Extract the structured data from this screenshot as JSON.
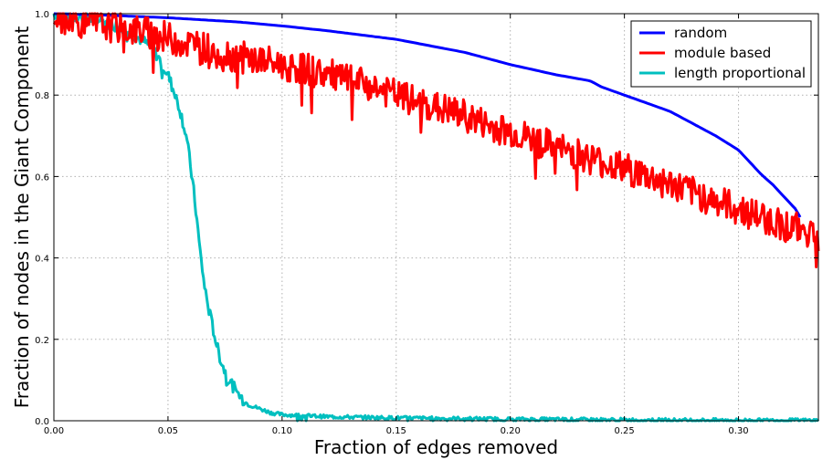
{
  "chart_data": {
    "type": "line",
    "xlabel": "Fraction of edges removed",
    "ylabel": "Fraction of nodes in the Giant Component",
    "xlim": [
      0,
      0.335
    ],
    "ylim": [
      0,
      1.0
    ],
    "xticks": [
      0,
      0.05,
      0.1,
      0.15,
      0.2,
      0.25,
      0.3
    ],
    "xtick_labels": [
      "0.00",
      "0.05",
      "0.10",
      "0.15",
      "0.20",
      "0.25",
      "0.30"
    ],
    "yticks": [
      0,
      0.2,
      0.4,
      0.6,
      0.8,
      1.0
    ],
    "ytick_labels": [
      "0.0",
      "0.2",
      "0.4",
      "0.6",
      "0.8",
      "1.0"
    ],
    "grid": true,
    "legend_position": "top-right",
    "series": [
      {
        "name": "random",
        "color": "#0000ff",
        "x": [
          0,
          0.02,
          0.05,
          0.08,
          0.1,
          0.12,
          0.15,
          0.18,
          0.2,
          0.22,
          0.235,
          0.24,
          0.25,
          0.26,
          0.27,
          0.28,
          0.29,
          0.3,
          0.305,
          0.31,
          0.315,
          0.32,
          0.325,
          0.327
        ],
        "y": [
          1.0,
          0.997,
          0.99,
          0.98,
          0.97,
          0.958,
          0.937,
          0.905,
          0.875,
          0.85,
          0.835,
          0.82,
          0.8,
          0.78,
          0.76,
          0.73,
          0.7,
          0.665,
          0.635,
          0.605,
          0.58,
          0.55,
          0.52,
          0.5
        ]
      },
      {
        "name": "module based",
        "color": "#ff0000",
        "x": [
          0,
          0.01,
          0.02,
          0.03,
          0.04,
          0.05,
          0.06,
          0.07,
          0.08,
          0.09,
          0.1,
          0.11,
          0.12,
          0.13,
          0.14,
          0.15,
          0.16,
          0.17,
          0.18,
          0.19,
          0.2,
          0.21,
          0.22,
          0.23,
          0.24,
          0.25,
          0.26,
          0.27,
          0.28,
          0.29,
          0.3,
          0.31,
          0.32,
          0.335
        ],
        "y": [
          0.99,
          0.98,
          0.975,
          0.965,
          0.955,
          0.94,
          0.925,
          0.91,
          0.895,
          0.885,
          0.875,
          0.865,
          0.85,
          0.835,
          0.82,
          0.8,
          0.78,
          0.765,
          0.75,
          0.725,
          0.71,
          0.69,
          0.67,
          0.655,
          0.635,
          0.62,
          0.6,
          0.58,
          0.56,
          0.54,
          0.52,
          0.5,
          0.48,
          0.46
        ],
        "noise": 0.04
      },
      {
        "name": "length proportional",
        "color": "#00bfbf",
        "x": [
          0,
          0.02,
          0.03,
          0.04,
          0.045,
          0.05,
          0.055,
          0.058,
          0.06,
          0.062,
          0.064,
          0.066,
          0.068,
          0.07,
          0.072,
          0.075,
          0.08,
          0.085,
          0.09,
          0.095,
          0.1,
          0.12,
          0.15,
          0.2,
          0.25,
          0.3,
          0.335
        ],
        "y": [
          1.0,
          0.985,
          0.965,
          0.93,
          0.9,
          0.85,
          0.77,
          0.7,
          0.62,
          0.53,
          0.42,
          0.33,
          0.27,
          0.22,
          0.17,
          0.12,
          0.07,
          0.04,
          0.03,
          0.02,
          0.015,
          0.01,
          0.007,
          0.004,
          0.002,
          0.001,
          0.001
        ],
        "noise": 0.015
      }
    ]
  }
}
